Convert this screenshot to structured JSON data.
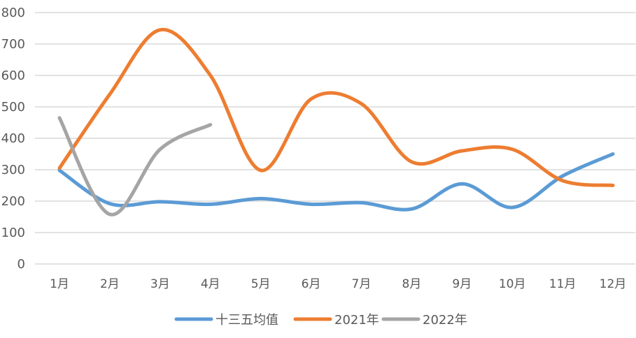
{
  "chart_data": {
    "type": "line",
    "title": "",
    "xlabel": "",
    "ylabel": "",
    "ylim": [
      0,
      800
    ],
    "yticks": [
      0,
      100,
      200,
      300,
      400,
      500,
      600,
      700,
      800
    ],
    "grid": true,
    "smooth": true,
    "legend_position": "bottom",
    "categories": [
      "1月",
      "2月",
      "3月",
      "4月",
      "5月",
      "6月",
      "7月",
      "8月",
      "9月",
      "10月",
      "11月",
      "12月"
    ],
    "series": [
      {
        "name": "十三五均值",
        "color": "#5b9bd5",
        "values": [
          298,
          192,
          198,
          190,
          208,
          190,
          195,
          175,
          255,
          180,
          280,
          350
        ]
      },
      {
        "name": "2021年",
        "color": "#ed7d31",
        "values": [
          305,
          540,
          745,
          600,
          298,
          525,
          510,
          325,
          360,
          365,
          265,
          250
        ]
      },
      {
        "name": "2022年",
        "color": "#a5a5a5",
        "values": [
          465,
          158,
          365,
          443
        ]
      }
    ]
  }
}
